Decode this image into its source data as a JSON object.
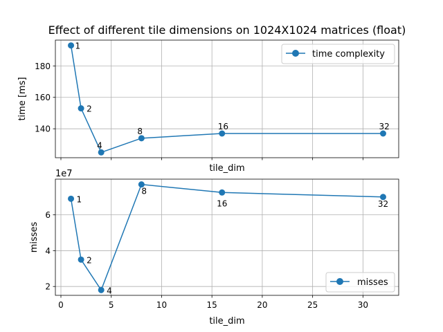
{
  "chart_data": [
    {
      "type": "line",
      "title": "Effect of different tile dimensions on 1024X1024 matrices (float)",
      "xlabel": "tile_dim",
      "ylabel": "time [ms]",
      "x": [
        1,
        2,
        4,
        8,
        16,
        32
      ],
      "series": [
        {
          "name": "time complexity",
          "values": [
            193,
            153,
            125,
            134,
            137,
            137
          ]
        }
      ],
      "point_labels": [
        "1",
        "2",
        "4",
        "8",
        "16",
        "32"
      ],
      "xlim": [
        -0.55,
        33.55
      ],
      "ylim": [
        121.6,
        196.4
      ],
      "yticks": [
        140,
        160,
        180
      ],
      "xticks_shown": false,
      "grid": true,
      "legend": "upper right",
      "color": "#1f77b4"
    },
    {
      "type": "line",
      "title": "",
      "xlabel": "tile_dim",
      "ylabel": "misses",
      "offset_text": "1e7",
      "x": [
        1,
        2,
        4,
        8,
        16,
        32
      ],
      "series": [
        {
          "name": "misses",
          "values": [
            69000000,
            35000000,
            18000000,
            77000000,
            72500000,
            70000000
          ]
        }
      ],
      "point_labels": [
        "1",
        "2",
        "4",
        "8",
        "16",
        "32"
      ],
      "xlim": [
        -0.55,
        33.55
      ],
      "xticks": [
        0,
        5,
        10,
        15,
        20,
        25,
        30
      ],
      "ylim": [
        15050000,
        79950000
      ],
      "yticks": [
        20000000,
        40000000,
        60000000
      ],
      "ytick_labels": [
        "2",
        "4",
        "6"
      ],
      "grid": true,
      "legend": "lower right",
      "color": "#1f77b4"
    }
  ]
}
